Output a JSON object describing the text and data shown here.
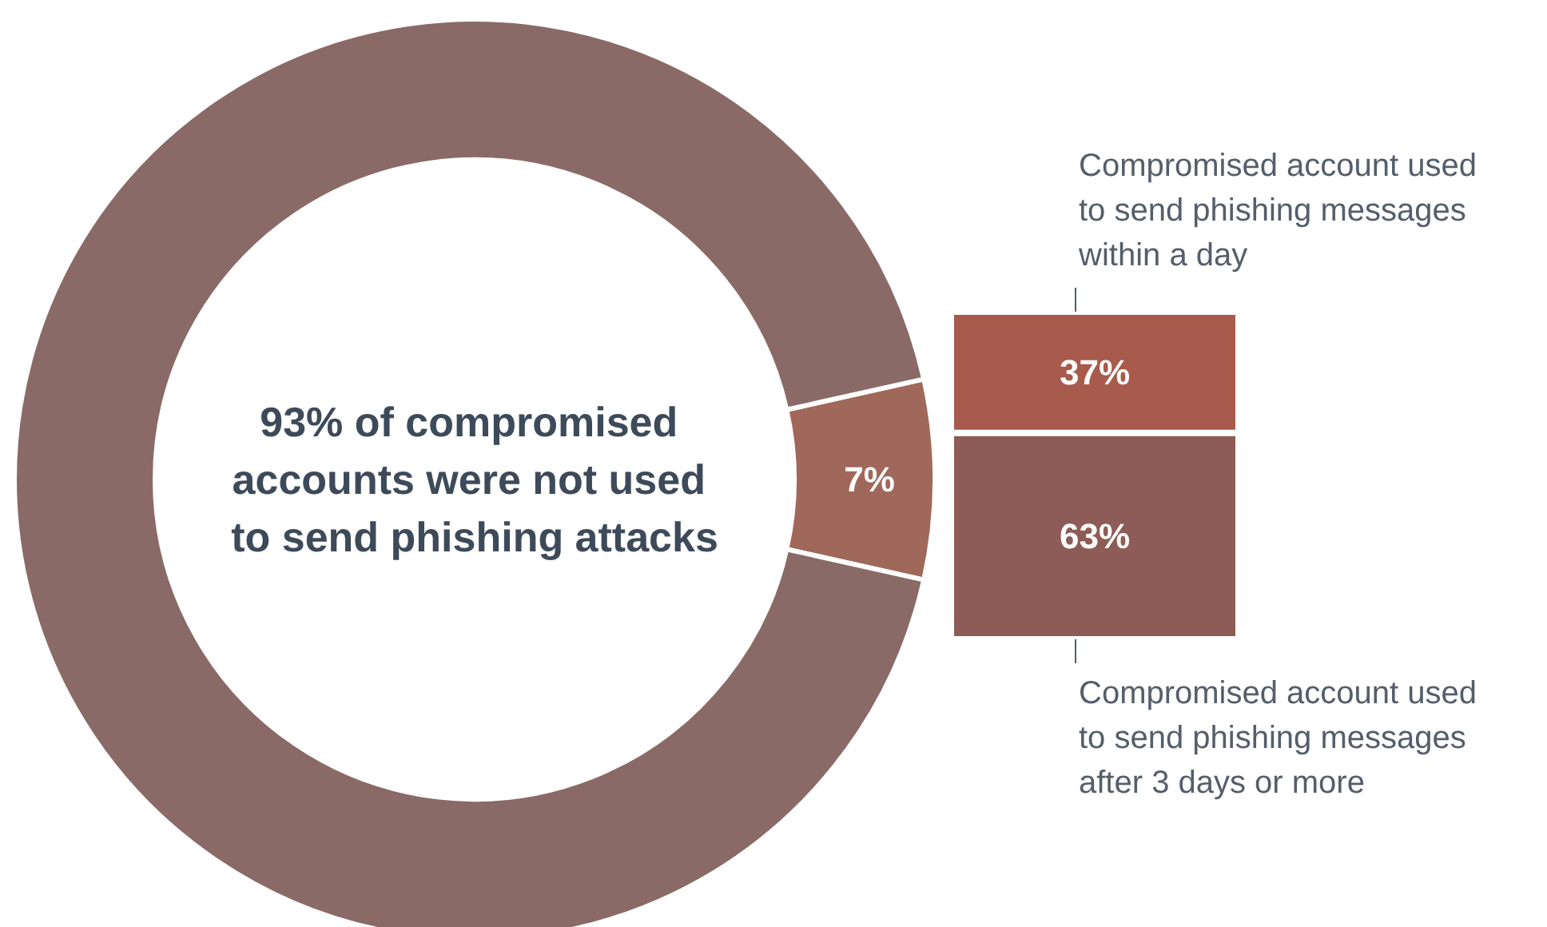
{
  "chart_data": [
    {
      "type": "donut",
      "categories": [
        null,
        null
      ],
      "values": [
        7,
        93
      ],
      "colors": [
        "#a0685a",
        "#8a6a66"
      ],
      "value_labels": [
        "7%",
        null
      ],
      "annotations": [
        "93% of compromised accounts were not used to send phishing attacks"
      ]
    },
    {
      "type": "bar",
      "stacked": true,
      "categories": [
        null
      ],
      "series": [
        {
          "name": "Compromised account used to send phishing messages after 3 days or more",
          "color": "#8e5c56",
          "values": [
            63
          ],
          "value_labels": [
            "63%"
          ]
        },
        {
          "name": "Compromised account used to send phishing messages within a day",
          "color": "#a85a4c",
          "values": [
            37
          ],
          "value_labels": [
            "37%"
          ]
        }
      ]
    }
  ]
}
